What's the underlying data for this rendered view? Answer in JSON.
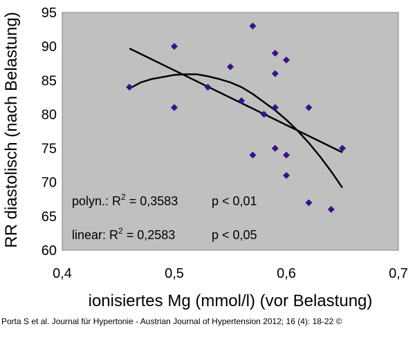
{
  "chart_data": {
    "type": "scatter",
    "title": "",
    "xlabel": "ionisiertes Mg (mmol/l) (vor Belastung)",
    "ylabel": "RR diastolisch (nach Belastung)",
    "xlim": [
      0.4,
      0.7
    ],
    "ylim": [
      60,
      95
    ],
    "xticks": [
      0.4,
      0.5,
      0.6,
      0.7
    ],
    "xtick_labels": [
      "0,4",
      "0,5",
      "0,6",
      "0,7"
    ],
    "yticks": [
      60,
      65,
      70,
      75,
      80,
      85,
      90,
      95
    ],
    "ytick_labels": [
      "60",
      "65",
      "70",
      "75",
      "80",
      "85",
      "90",
      "95"
    ],
    "grid": false,
    "plot_background": "#c0c0c0",
    "marker_color": "#3b0f8a",
    "line_color": "#000000",
    "points": [
      {
        "x": 0.46,
        "y": 84
      },
      {
        "x": 0.5,
        "y": 90
      },
      {
        "x": 0.5,
        "y": 81
      },
      {
        "x": 0.53,
        "y": 84
      },
      {
        "x": 0.55,
        "y": 87
      },
      {
        "x": 0.56,
        "y": 82
      },
      {
        "x": 0.57,
        "y": 93
      },
      {
        "x": 0.57,
        "y": 74
      },
      {
        "x": 0.58,
        "y": 80
      },
      {
        "x": 0.59,
        "y": 89
      },
      {
        "x": 0.59,
        "y": 86
      },
      {
        "x": 0.59,
        "y": 81
      },
      {
        "x": 0.59,
        "y": 75
      },
      {
        "x": 0.6,
        "y": 88
      },
      {
        "x": 0.6,
        "y": 74
      },
      {
        "x": 0.6,
        "y": 71
      },
      {
        "x": 0.62,
        "y": 81
      },
      {
        "x": 0.62,
        "y": 67
      },
      {
        "x": 0.64,
        "y": 66
      },
      {
        "x": 0.65,
        "y": 75
      }
    ],
    "linear_fit": {
      "x": [
        0.46,
        0.65
      ],
      "y": [
        89.7,
        74.4
      ]
    },
    "polynomial_fit": {
      "x": [
        0.46,
        0.47,
        0.48,
        0.49,
        0.5,
        0.51,
        0.52,
        0.53,
        0.54,
        0.55,
        0.56,
        0.57,
        0.58,
        0.59,
        0.6,
        0.61,
        0.62,
        0.63,
        0.64,
        0.65
      ],
      "y": [
        83.8,
        84.7,
        85.2,
        85.5,
        85.8,
        85.9,
        85.9,
        85.6,
        85.2,
        84.7,
        84.0,
        83.0,
        81.8,
        80.6,
        79.2,
        77.6,
        75.8,
        73.8,
        71.6,
        69.2
      ]
    },
    "annotations": [
      {
        "model": "polyn.: ",
        "r_base": "R",
        "r_sup": "2",
        "r_value": " = 0,3583",
        "p_value": "p < 0,01"
      },
      {
        "model": "linear: ",
        "r_base": "R",
        "r_sup": "2",
        "r_value": " = 0,2583",
        "p_value": "p < 0,05"
      }
    ]
  },
  "caption": "Porta S et al. Journal für Hypertonie - Austrian Journal of Hypertension 2012; 16 (4): 18-22 ©"
}
